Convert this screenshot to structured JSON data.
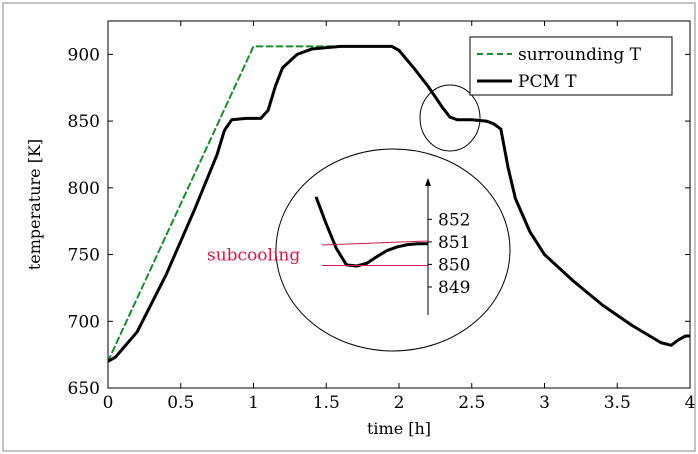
{
  "chart_data": {
    "type": "line",
    "xlabel": "time [h]",
    "ylabel": "temperature [K]",
    "xlim": [
      0,
      4
    ],
    "ylim": [
      650,
      925
    ],
    "x_ticks": [
      "0",
      "0.5",
      "1",
      "1.5",
      "2",
      "2.5",
      "3",
      "3.5",
      "4"
    ],
    "y_ticks": [
      "650",
      "700",
      "750",
      "800",
      "850",
      "900"
    ],
    "grid": false,
    "legend_position": "top-right",
    "series": [
      {
        "name": "surrounding T",
        "style": "dashed",
        "color": "#1a8c2e",
        "x": [
          0,
          1.0,
          1.55
        ],
        "y": [
          670,
          906,
          906
        ]
      },
      {
        "name": "PCM T",
        "style": "solid",
        "color": "#000000",
        "x": [
          0,
          0.05,
          0.2,
          0.4,
          0.6,
          0.75,
          0.8,
          0.85,
          0.95,
          1.05,
          1.1,
          1.15,
          1.2,
          1.3,
          1.4,
          1.5,
          1.6,
          1.7,
          1.8,
          1.9,
          1.95,
          2.0,
          2.1,
          2.2,
          2.3,
          2.35,
          2.4,
          2.5,
          2.6,
          2.65,
          2.7,
          2.75,
          2.8,
          2.9,
          3.0,
          3.2,
          3.4,
          3.6,
          3.8,
          3.87,
          3.92,
          3.97,
          4.0
        ],
        "y": [
          670,
          673,
          692,
          735,
          785,
          825,
          843,
          851,
          852,
          852,
          858,
          876,
          890,
          900,
          904,
          905,
          906,
          906,
          906,
          906,
          906,
          903,
          890,
          876,
          860,
          853,
          851,
          851,
          850,
          848,
          844,
          815,
          792,
          767,
          750,
          730,
          712,
          697,
          684,
          682,
          686,
          689,
          689
        ]
      }
    ],
    "annotations": [
      {
        "text": "subcooling"
      }
    ],
    "inset": {
      "y_ticks": [
        "852",
        "851",
        "850",
        "849"
      ],
      "ylim": [
        848.2,
        853.3
      ],
      "curve_y": [
        853.0,
        851.8,
        850.7,
        849.98,
        849.93,
        850.05,
        850.35,
        850.62,
        850.78,
        850.88,
        850.92,
        850.92
      ],
      "subcooling_band": [
        849.95,
        850.95
      ]
    }
  },
  "colors": {
    "surrounding": "#1a8c2e",
    "pcm": "#000000",
    "annotation": "#d11a4a"
  }
}
